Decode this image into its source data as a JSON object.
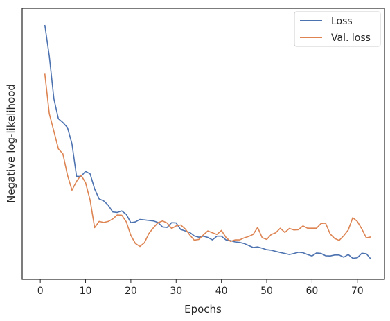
{
  "chart_data": {
    "type": "line",
    "title": "",
    "xlabel": "Epochs",
    "ylabel": "Negative log-likelihood",
    "xlim": [
      -4,
      76
    ],
    "ylim": [
      0,
      1
    ],
    "xticks": [
      0,
      10,
      20,
      30,
      40,
      50,
      60,
      70
    ],
    "yticks_shown": false,
    "grid": false,
    "legend_position": "top-right",
    "series": [
      {
        "name": "Loss",
        "color": "#4c72b0",
        "x": [
          1,
          2,
          3,
          4,
          5,
          6,
          7,
          8,
          9,
          10,
          11,
          12,
          13,
          14,
          15,
          16,
          17,
          18,
          19,
          20,
          21,
          22,
          23,
          24,
          25,
          26,
          27,
          28,
          29,
          30,
          31,
          32,
          33,
          34,
          35,
          36,
          37,
          38,
          39,
          40,
          41,
          42,
          43,
          44,
          45,
          46,
          47,
          48,
          49,
          50,
          51,
          52,
          53,
          54,
          55,
          56,
          57,
          58,
          59,
          60,
          61,
          62,
          63,
          64,
          65,
          66,
          67,
          68,
          69,
          70,
          71,
          72,
          73
        ],
        "y": [
          0.975,
          0.85,
          0.68,
          0.6,
          0.585,
          0.565,
          0.5,
          0.37,
          0.37,
          0.39,
          0.38,
          0.32,
          0.28,
          0.272,
          0.255,
          0.228,
          0.226,
          0.232,
          0.218,
          0.185,
          0.188,
          0.198,
          0.196,
          0.194,
          0.192,
          0.186,
          0.168,
          0.166,
          0.185,
          0.184,
          0.158,
          0.152,
          0.146,
          0.132,
          0.127,
          0.131,
          0.126,
          0.116,
          0.131,
          0.131,
          0.116,
          0.113,
          0.108,
          0.106,
          0.102,
          0.094,
          0.086,
          0.088,
          0.083,
          0.077,
          0.075,
          0.07,
          0.066,
          0.062,
          0.058,
          0.062,
          0.067,
          0.065,
          0.058,
          0.052,
          0.064,
          0.062,
          0.053,
          0.052,
          0.056,
          0.056,
          0.047,
          0.058,
          0.043,
          0.045,
          0.063,
          0.061,
          0.04
        ]
      },
      {
        "name": "Val. loss",
        "color": "#dd8452",
        "x": [
          1,
          2,
          3,
          4,
          5,
          6,
          7,
          8,
          9,
          10,
          11,
          12,
          13,
          14,
          15,
          16,
          17,
          18,
          19,
          20,
          21,
          22,
          23,
          24,
          25,
          26,
          27,
          28,
          29,
          30,
          31,
          32,
          33,
          34,
          35,
          36,
          37,
          38,
          39,
          40,
          41,
          42,
          43,
          44,
          45,
          46,
          47,
          48,
          49,
          50,
          51,
          52,
          53,
          54,
          55,
          56,
          57,
          58,
          59,
          60,
          61,
          62,
          63,
          64,
          65,
          66,
          67,
          68,
          69,
          70,
          71,
          72,
          73
        ],
        "y": [
          0.78,
          0.62,
          0.55,
          0.48,
          0.46,
          0.375,
          0.315,
          0.35,
          0.375,
          0.345,
          0.275,
          0.165,
          0.19,
          0.186,
          0.19,
          0.2,
          0.216,
          0.215,
          0.188,
          0.134,
          0.102,
          0.09,
          0.105,
          0.142,
          0.165,
          0.185,
          0.192,
          0.184,
          0.162,
          0.172,
          0.176,
          0.16,
          0.136,
          0.115,
          0.118,
          0.136,
          0.152,
          0.145,
          0.138,
          0.154,
          0.126,
          0.11,
          0.116,
          0.116,
          0.124,
          0.13,
          0.138,
          0.166,
          0.125,
          0.118,
          0.138,
          0.145,
          0.163,
          0.146,
          0.162,
          0.156,
          0.157,
          0.172,
          0.163,
          0.163,
          0.163,
          0.182,
          0.183,
          0.14,
          0.122,
          0.114,
          0.133,
          0.156,
          0.205,
          0.19,
          0.16,
          0.124,
          0.128
        ]
      }
    ]
  }
}
